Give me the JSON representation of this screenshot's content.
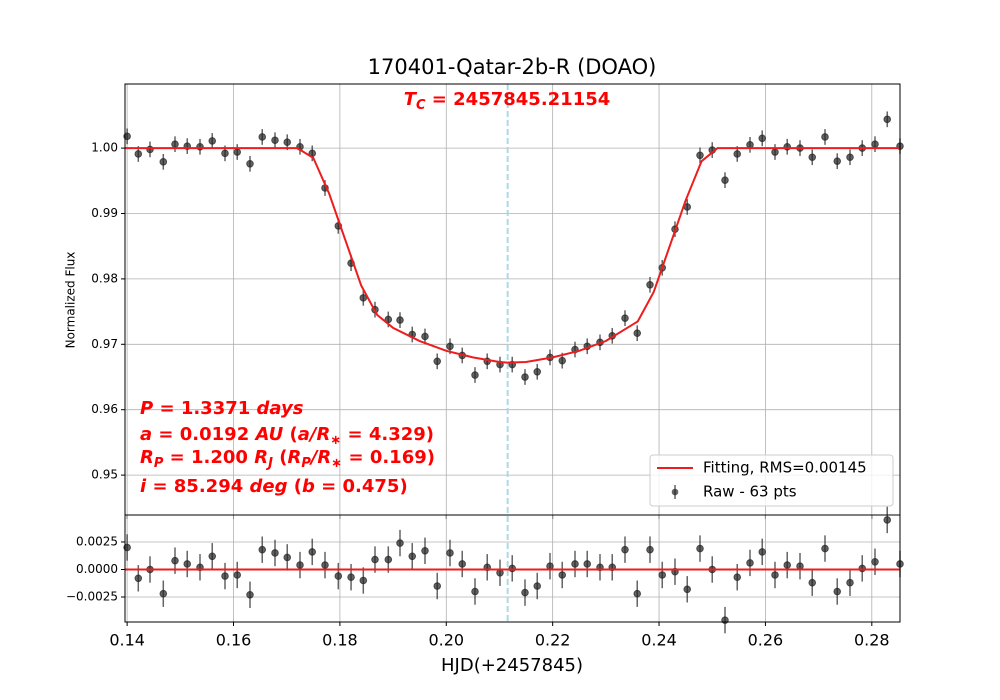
{
  "chart_data": [
    {
      "type": "scatter",
      "title": "170401-Qatar-2b-R (DOAO)",
      "ylabel": "Normalized Flux",
      "xlim": [
        0.1396,
        0.2853
      ],
      "ylim": [
        0.9439,
        1.0098
      ],
      "yticks": [
        0.95,
        0.96,
        0.97,
        0.98,
        0.99,
        {
          "value": 1.0,
          "label": "1.00"
        }
      ],
      "grid": true,
      "legend": "lower right",
      "tc": 0.21154,
      "tc_color": "#add8e6",
      "annotations": [
        [
          {
            "text": "T",
            "style": "i"
          },
          {
            "text": "C",
            "style": "sub"
          },
          {
            "text": " = 2457845.21154",
            "style": "n"
          }
        ],
        [
          {
            "text": "P",
            "style": "i"
          },
          {
            "text": " = 1.3371 ",
            "style": "n"
          },
          {
            "text": "days",
            "style": "i"
          }
        ],
        [
          {
            "text": "a",
            "style": "i"
          },
          {
            "text": " = 0.0192 ",
            "style": "n"
          },
          {
            "text": "AU",
            "style": "i"
          },
          {
            "text": " (",
            "style": "n"
          },
          {
            "text": "a/R",
            "style": "i"
          },
          {
            "text": "∗",
            "style": "sub"
          },
          {
            "text": " = 4.329)",
            "style": "n"
          }
        ],
        [
          {
            "text": "R",
            "style": "i"
          },
          {
            "text": "P",
            "style": "sub"
          },
          {
            "text": " = 1.200 ",
            "style": "n"
          },
          {
            "text": "R",
            "style": "i"
          },
          {
            "text": "J",
            "style": "sub"
          },
          {
            "text": " (",
            "style": "n"
          },
          {
            "text": "R",
            "style": "i"
          },
          {
            "text": "P",
            "style": "sub"
          },
          {
            "text": "/R",
            "style": "i"
          },
          {
            "text": "∗",
            "style": "sub"
          },
          {
            "text": " = 0.169)",
            "style": "n"
          }
        ],
        [
          {
            "text": "i",
            "style": "i"
          },
          {
            "text": " = 85.294 ",
            "style": "n"
          },
          {
            "text": "deg",
            "style": "i"
          },
          {
            "text": " (",
            "style": "n"
          },
          {
            "text": "b",
            "style": "i"
          },
          {
            "text": " = 0.475)",
            "style": "n"
          }
        ]
      ],
      "annotation_color": "#ff0000",
      "series": [
        {
          "name": "Fitting, RMS=0.00145",
          "type": "line",
          "color": "#ee1c1c",
          "x": [
            0.1396,
            0.172,
            0.175,
            0.178,
            0.181,
            0.184,
            0.187,
            0.19,
            0.195,
            0.2,
            0.205,
            0.21,
            0.2115,
            0.215,
            0.22,
            0.225,
            0.23,
            0.236,
            0.239,
            0.242,
            0.245,
            0.248,
            0.251,
            0.2853
          ],
          "values": [
            1.0,
            1.0,
            0.9985,
            0.993,
            0.986,
            0.979,
            0.9745,
            0.9725,
            0.9705,
            0.969,
            0.968,
            0.9673,
            0.9672,
            0.9673,
            0.968,
            0.969,
            0.9705,
            0.9735,
            0.978,
            0.985,
            0.992,
            0.998,
            1.0,
            1.0
          ]
        },
        {
          "name": "Raw - 63 pts",
          "type": "errorbar",
          "color": "#222222",
          "yerr": 0.0012,
          "x": [
            0.14,
            0.1421,
            0.1443,
            0.1468,
            0.149,
            0.1513,
            0.1537,
            0.156,
            0.1584,
            0.1607,
            0.1631,
            0.1654,
            0.1678,
            0.1701,
            0.1725,
            0.1748,
            0.1772,
            0.1797,
            0.1821,
            0.1844,
            0.1866,
            0.1891,
            0.1913,
            0.1936,
            0.196,
            0.1983,
            0.2007,
            0.203,
            0.2054,
            0.2077,
            0.2101,
            0.2124,
            0.2148,
            0.2171,
            0.2195,
            0.2218,
            0.2242,
            0.2265,
            0.2289,
            0.2312,
            0.2336,
            0.2359,
            0.2383,
            0.2406,
            0.243,
            0.2453,
            0.2477,
            0.25,
            0.2524,
            0.2547,
            0.2571,
            0.2594,
            0.2618,
            0.2641,
            0.2665,
            0.2688,
            0.2712,
            0.2735,
            0.2759,
            0.2782,
            0.2806,
            0.2829,
            0.2853
          ],
          "values": [
            1.0018,
            0.9991,
            0.9998,
            0.9979,
            1.0006,
            1.0003,
            1.0002,
            1.0011,
            0.9992,
            0.9994,
            0.9976,
            1.0017,
            1.0012,
            1.0009,
            1.0002,
            0.9992,
            0.9939,
            0.9881,
            0.9824,
            0.9771,
            0.9753,
            0.9738,
            0.9737,
            0.9715,
            0.9712,
            0.9674,
            0.9697,
            0.9683,
            0.9653,
            0.9674,
            0.9669,
            0.9669,
            0.965,
            0.9658,
            0.968,
            0.9675,
            0.9692,
            0.9697,
            0.9703,
            0.9713,
            0.974,
            0.9717,
            0.9791,
            0.9817,
            0.9876,
            0.991,
            0.9989,
            0.9997,
            0.9951,
            0.9991,
            1.0005,
            1.0015,
            0.9994,
            1.0002,
            1.0,
            0.9986,
            1.0017,
            0.998,
            0.9986,
            1.0,
            1.0006,
            1.0044,
            1.0003
          ]
        }
      ]
    },
    {
      "type": "scatter",
      "xlabel": "HJD(+2457845)",
      "xlim": [
        0.1396,
        0.2853
      ],
      "ylim": [
        -0.00477,
        0.00495
      ],
      "xticks": [
        0.14,
        0.16,
        0.18,
        {
          "value": 0.2,
          "label": "0.20"
        },
        0.22,
        0.24,
        0.26,
        0.28
      ],
      "yticks": [
        {
          "value": 0.0025,
          "label": "0.0025"
        },
        {
          "value": 0,
          "label": "0.0000"
        },
        {
          "value": -0.0025,
          "label": "−0.0025"
        }
      ],
      "grid": true,
      "series": [
        {
          "type": "line",
          "color": "#ee1c1c",
          "x": [
            0.1396,
            0.2853
          ],
          "values": [
            0,
            0
          ]
        },
        {
          "type": "errorbar",
          "color": "#222222",
          "yerr": 0.0012,
          "values": [
            0.002,
            -0.0008,
            0.0,
            -0.0022,
            0.0008,
            0.0005,
            0.0002,
            0.0012,
            -0.0006,
            -0.0005,
            -0.0023,
            0.0018,
            0.0015,
            0.0011,
            0.0004,
            0.0016,
            0.0004,
            -0.0006,
            -0.0007,
            -0.001,
            0.0009,
            0.0009,
            0.0024,
            0.0012,
            0.0017,
            -0.0015,
            0.0015,
            0.0005,
            -0.002,
            0.0002,
            -0.0003,
            0.0001,
            -0.0021,
            -0.0015,
            0.0003,
            -0.0005,
            0.0005,
            0.0005,
            0.0002,
            0.0002,
            0.0018,
            -0.0022,
            0.0018,
            -0.0005,
            -0.0002,
            -0.0018,
            0.0019,
            0.0,
            -0.0046,
            -0.0007,
            0.0006,
            0.0016,
            -0.0005,
            0.0004,
            0.0003,
            -0.0012,
            0.0019,
            -0.002,
            -0.0012,
            0.0001,
            0.0007,
            0.0045,
            0.0005
          ]
        }
      ]
    }
  ]
}
